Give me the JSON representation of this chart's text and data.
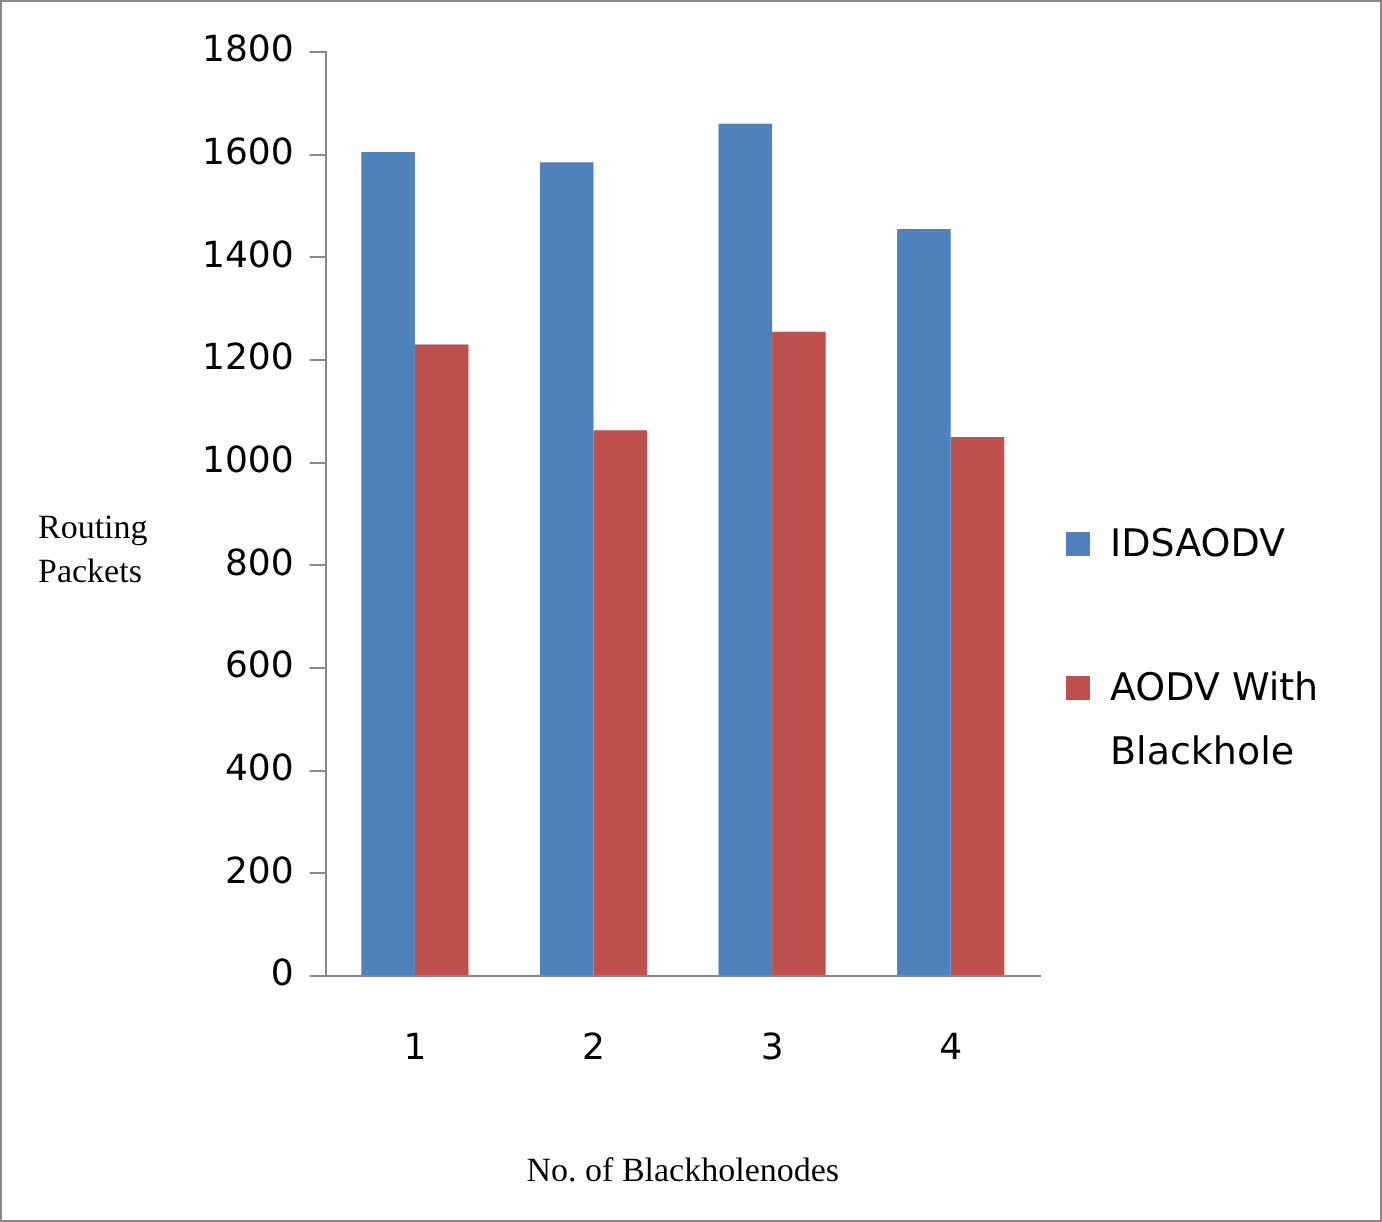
{
  "chart_data": {
    "type": "bar",
    "xlabel": "No. of Blackholenodes",
    "ylabel": "Routing Packets",
    "categories": [
      "1",
      "2",
      "3",
      "4"
    ],
    "series": [
      {
        "name": "IDSAODV",
        "color": "#4f81bd",
        "values": [
          1605,
          1585,
          1660,
          1455
        ]
      },
      {
        "name": "AODV With Blackhole",
        "color": "#c0504d",
        "values": [
          1230,
          1063,
          1255,
          1050
        ]
      }
    ],
    "ylim": [
      0,
      1800
    ],
    "yticks": [
      0,
      200,
      400,
      600,
      800,
      1000,
      1200,
      1400,
      1600,
      1800
    ],
    "grid": false,
    "legend": "right"
  }
}
